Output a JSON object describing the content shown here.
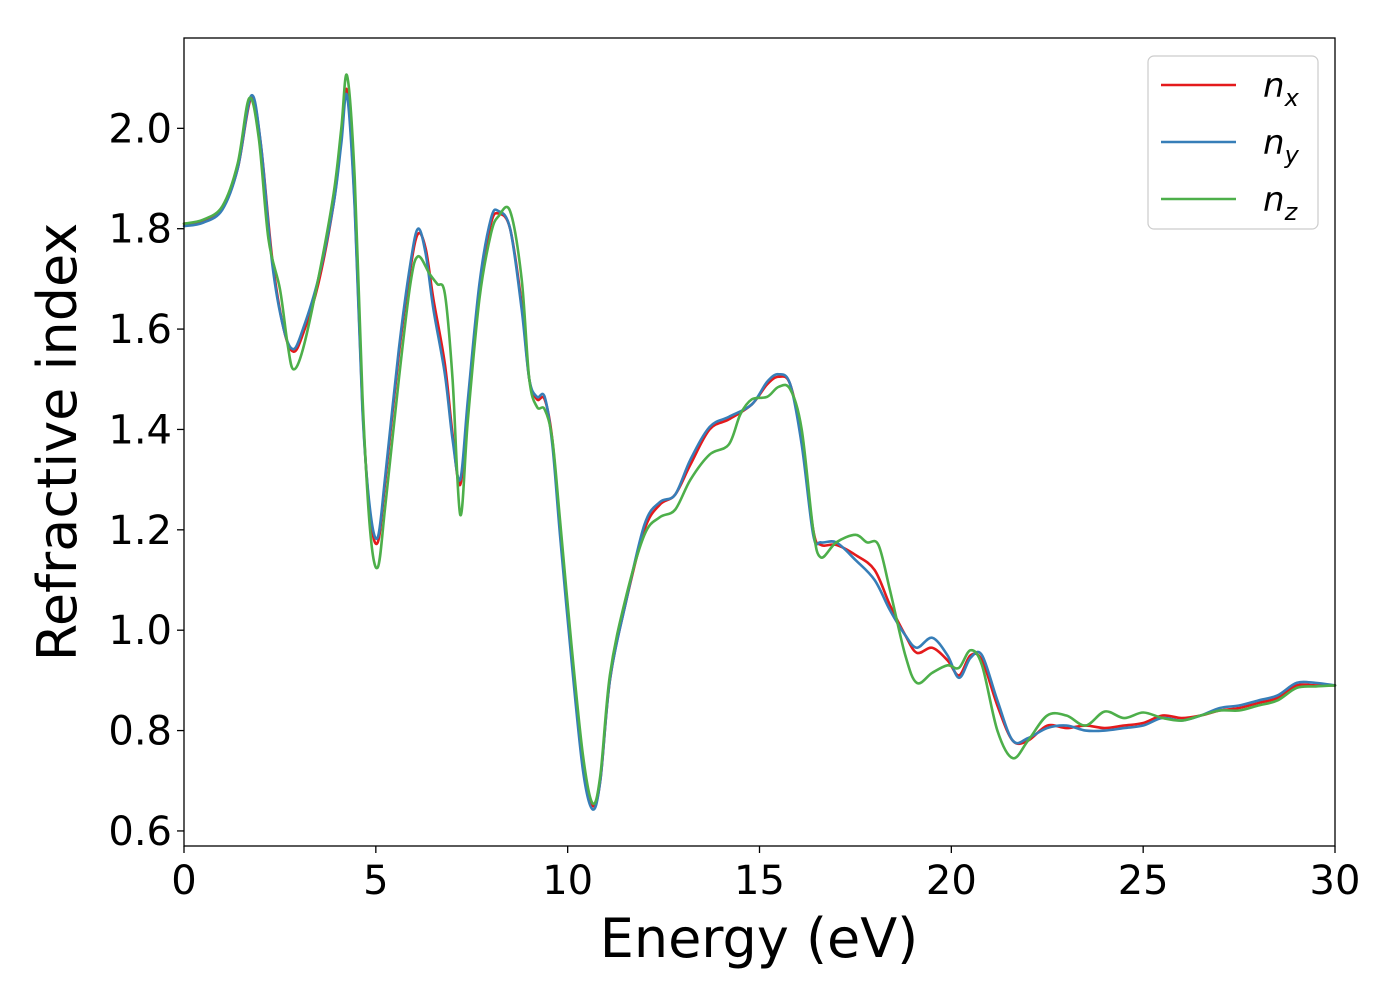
{
  "chart_data": {
    "type": "line",
    "title": "",
    "xlabel": "Energy (eV)",
    "ylabel": "Refractive index",
    "xlim": [
      0,
      30
    ],
    "ylim": [
      0.57,
      2.18
    ],
    "xticks": [
      0,
      5,
      10,
      15,
      20,
      25,
      30
    ],
    "xtick_labels": [
      "0",
      "5",
      "10",
      "15",
      "20",
      "25",
      "30"
    ],
    "yticks": [
      0.6,
      0.8,
      1.0,
      1.2,
      1.4,
      1.6,
      1.8,
      2.0
    ],
    "ytick_labels": [
      "0.6",
      "0.8",
      "1.0",
      "1.2",
      "1.4",
      "1.6",
      "1.8",
      "2.0"
    ],
    "grid": false,
    "legend_position": "top-right",
    "series": [
      {
        "name": "n_x",
        "label_base": "n",
        "label_sub": "x",
        "color": "#e41a1c",
        "points": [
          [
            0,
            1.81
          ],
          [
            0.5,
            1.815
          ],
          [
            1.0,
            1.84
          ],
          [
            1.4,
            1.92
          ],
          [
            1.75,
            2.06
          ],
          [
            2.0,
            1.97
          ],
          [
            2.3,
            1.74
          ],
          [
            2.6,
            1.6
          ],
          [
            2.85,
            1.555
          ],
          [
            3.1,
            1.59
          ],
          [
            3.5,
            1.69
          ],
          [
            3.9,
            1.85
          ],
          [
            4.1,
            1.98
          ],
          [
            4.25,
            2.075
          ],
          [
            4.45,
            1.85
          ],
          [
            4.65,
            1.45
          ],
          [
            4.85,
            1.23
          ],
          [
            5.05,
            1.175
          ],
          [
            5.25,
            1.3
          ],
          [
            5.6,
            1.55
          ],
          [
            5.9,
            1.72
          ],
          [
            6.1,
            1.79
          ],
          [
            6.3,
            1.76
          ],
          [
            6.5,
            1.66
          ],
          [
            6.8,
            1.53
          ],
          [
            7.0,
            1.39
          ],
          [
            7.2,
            1.29
          ],
          [
            7.4,
            1.45
          ],
          [
            7.7,
            1.68
          ],
          [
            8.0,
            1.81
          ],
          [
            8.2,
            1.83
          ],
          [
            8.5,
            1.8
          ],
          [
            8.8,
            1.65
          ],
          [
            9.0,
            1.5
          ],
          [
            9.2,
            1.46
          ],
          [
            9.4,
            1.46
          ],
          [
            9.6,
            1.38
          ],
          [
            9.8,
            1.2
          ],
          [
            10.1,
            0.95
          ],
          [
            10.4,
            0.73
          ],
          [
            10.65,
            0.65
          ],
          [
            10.85,
            0.7
          ],
          [
            11.1,
            0.9
          ],
          [
            11.5,
            1.05
          ],
          [
            12.0,
            1.2
          ],
          [
            12.4,
            1.25
          ],
          [
            12.8,
            1.27
          ],
          [
            13.2,
            1.33
          ],
          [
            13.7,
            1.4
          ],
          [
            14.2,
            1.42
          ],
          [
            14.8,
            1.45
          ],
          [
            15.2,
            1.49
          ],
          [
            15.5,
            1.505
          ],
          [
            15.8,
            1.49
          ],
          [
            16.1,
            1.38
          ],
          [
            16.4,
            1.2
          ],
          [
            16.6,
            1.17
          ],
          [
            17.0,
            1.17
          ],
          [
            17.5,
            1.15
          ],
          [
            18.0,
            1.12
          ],
          [
            18.4,
            1.05
          ],
          [
            18.8,
            0.99
          ],
          [
            19.1,
            0.955
          ],
          [
            19.5,
            0.965
          ],
          [
            19.9,
            0.94
          ],
          [
            20.2,
            0.91
          ],
          [
            20.5,
            0.95
          ],
          [
            20.8,
            0.94
          ],
          [
            21.2,
            0.85
          ],
          [
            21.6,
            0.78
          ],
          [
            22.0,
            0.78
          ],
          [
            22.5,
            0.81
          ],
          [
            23.0,
            0.805
          ],
          [
            23.5,
            0.81
          ],
          [
            24.0,
            0.805
          ],
          [
            24.5,
            0.81
          ],
          [
            25.0,
            0.815
          ],
          [
            25.5,
            0.83
          ],
          [
            26.0,
            0.825
          ],
          [
            26.5,
            0.83
          ],
          [
            27.0,
            0.84
          ],
          [
            27.5,
            0.845
          ],
          [
            28.0,
            0.855
          ],
          [
            28.5,
            0.865
          ],
          [
            29.0,
            0.89
          ],
          [
            29.5,
            0.89
          ],
          [
            30.0,
            0.89
          ]
        ]
      },
      {
        "name": "n_y",
        "label_base": "n",
        "label_sub": "y",
        "color": "#377eb8",
        "points": [
          [
            0,
            1.805
          ],
          [
            0.5,
            1.812
          ],
          [
            1.0,
            1.838
          ],
          [
            1.4,
            1.92
          ],
          [
            1.75,
            2.065
          ],
          [
            2.0,
            1.97
          ],
          [
            2.3,
            1.73
          ],
          [
            2.6,
            1.6
          ],
          [
            2.85,
            1.56
          ],
          [
            3.1,
            1.6
          ],
          [
            3.5,
            1.7
          ],
          [
            3.9,
            1.85
          ],
          [
            4.1,
            1.97
          ],
          [
            4.25,
            2.065
          ],
          [
            4.45,
            1.84
          ],
          [
            4.65,
            1.44
          ],
          [
            4.85,
            1.24
          ],
          [
            5.05,
            1.185
          ],
          [
            5.25,
            1.31
          ],
          [
            5.6,
            1.56
          ],
          [
            5.9,
            1.73
          ],
          [
            6.1,
            1.8
          ],
          [
            6.3,
            1.75
          ],
          [
            6.5,
            1.64
          ],
          [
            6.8,
            1.51
          ],
          [
            7.0,
            1.38
          ],
          [
            7.2,
            1.3
          ],
          [
            7.4,
            1.46
          ],
          [
            7.7,
            1.69
          ],
          [
            8.0,
            1.82
          ],
          [
            8.2,
            1.835
          ],
          [
            8.5,
            1.8
          ],
          [
            8.8,
            1.64
          ],
          [
            9.0,
            1.5
          ],
          [
            9.2,
            1.465
          ],
          [
            9.4,
            1.465
          ],
          [
            9.6,
            1.37
          ],
          [
            9.8,
            1.19
          ],
          [
            10.1,
            0.94
          ],
          [
            10.4,
            0.72
          ],
          [
            10.65,
            0.643
          ],
          [
            10.85,
            0.7
          ],
          [
            11.1,
            0.9
          ],
          [
            11.5,
            1.05
          ],
          [
            12.0,
            1.21
          ],
          [
            12.4,
            1.255
          ],
          [
            12.8,
            1.27
          ],
          [
            13.2,
            1.34
          ],
          [
            13.7,
            1.405
          ],
          [
            14.2,
            1.425
          ],
          [
            14.8,
            1.45
          ],
          [
            15.2,
            1.495
          ],
          [
            15.5,
            1.51
          ],
          [
            15.8,
            1.49
          ],
          [
            16.1,
            1.37
          ],
          [
            16.4,
            1.19
          ],
          [
            16.6,
            1.175
          ],
          [
            17.0,
            1.175
          ],
          [
            17.5,
            1.14
          ],
          [
            18.0,
            1.1
          ],
          [
            18.4,
            1.04
          ],
          [
            18.8,
            0.99
          ],
          [
            19.1,
            0.965
          ],
          [
            19.5,
            0.985
          ],
          [
            19.9,
            0.95
          ],
          [
            20.2,
            0.905
          ],
          [
            20.5,
            0.945
          ],
          [
            20.8,
            0.95
          ],
          [
            21.2,
            0.86
          ],
          [
            21.6,
            0.78
          ],
          [
            22.0,
            0.785
          ],
          [
            22.5,
            0.805
          ],
          [
            23.0,
            0.81
          ],
          [
            23.5,
            0.8
          ],
          [
            24.0,
            0.8
          ],
          [
            24.5,
            0.805
          ],
          [
            25.0,
            0.81
          ],
          [
            25.5,
            0.825
          ],
          [
            26.0,
            0.82
          ],
          [
            26.5,
            0.83
          ],
          [
            27.0,
            0.845
          ],
          [
            27.5,
            0.85
          ],
          [
            28.0,
            0.86
          ],
          [
            28.5,
            0.87
          ],
          [
            29.0,
            0.895
          ],
          [
            29.5,
            0.895
          ],
          [
            30.0,
            0.89
          ]
        ]
      },
      {
        "name": "n_z",
        "label_base": "n",
        "label_sub": "z",
        "color": "#4daf4a",
        "points": [
          [
            0,
            1.81
          ],
          [
            0.5,
            1.818
          ],
          [
            1.0,
            1.845
          ],
          [
            1.4,
            1.93
          ],
          [
            1.7,
            2.06
          ],
          [
            1.95,
            1.98
          ],
          [
            2.2,
            1.78
          ],
          [
            2.5,
            1.68
          ],
          [
            2.7,
            1.57
          ],
          [
            2.85,
            1.52
          ],
          [
            3.1,
            1.56
          ],
          [
            3.5,
            1.7
          ],
          [
            3.9,
            1.87
          ],
          [
            4.1,
            2.0
          ],
          [
            4.25,
            2.105
          ],
          [
            4.45,
            1.9
          ],
          [
            4.65,
            1.47
          ],
          [
            4.85,
            1.2
          ],
          [
            5.05,
            1.125
          ],
          [
            5.25,
            1.25
          ],
          [
            5.6,
            1.5
          ],
          [
            5.9,
            1.69
          ],
          [
            6.1,
            1.745
          ],
          [
            6.4,
            1.71
          ],
          [
            6.6,
            1.69
          ],
          [
            6.8,
            1.67
          ],
          [
            7.0,
            1.5
          ],
          [
            7.2,
            1.23
          ],
          [
            7.4,
            1.42
          ],
          [
            7.7,
            1.66
          ],
          [
            8.0,
            1.79
          ],
          [
            8.2,
            1.825
          ],
          [
            8.5,
            1.835
          ],
          [
            8.8,
            1.7
          ],
          [
            9.0,
            1.5
          ],
          [
            9.2,
            1.445
          ],
          [
            9.4,
            1.44
          ],
          [
            9.6,
            1.38
          ],
          [
            9.8,
            1.22
          ],
          [
            10.1,
            0.97
          ],
          [
            10.4,
            0.75
          ],
          [
            10.65,
            0.655
          ],
          [
            10.85,
            0.71
          ],
          [
            11.1,
            0.91
          ],
          [
            11.5,
            1.06
          ],
          [
            12.0,
            1.19
          ],
          [
            12.4,
            1.225
          ],
          [
            12.8,
            1.24
          ],
          [
            13.2,
            1.3
          ],
          [
            13.7,
            1.35
          ],
          [
            14.2,
            1.37
          ],
          [
            14.5,
            1.43
          ],
          [
            14.8,
            1.46
          ],
          [
            15.2,
            1.465
          ],
          [
            15.5,
            1.485
          ],
          [
            15.8,
            1.48
          ],
          [
            16.1,
            1.4
          ],
          [
            16.4,
            1.2
          ],
          [
            16.6,
            1.145
          ],
          [
            17.0,
            1.175
          ],
          [
            17.5,
            1.19
          ],
          [
            17.8,
            1.175
          ],
          [
            18.1,
            1.17
          ],
          [
            18.4,
            1.08
          ],
          [
            18.8,
            0.95
          ],
          [
            19.1,
            0.895
          ],
          [
            19.5,
            0.915
          ],
          [
            19.9,
            0.93
          ],
          [
            20.2,
            0.925
          ],
          [
            20.5,
            0.96
          ],
          [
            20.8,
            0.93
          ],
          [
            21.2,
            0.8
          ],
          [
            21.6,
            0.745
          ],
          [
            22.0,
            0.78
          ],
          [
            22.5,
            0.83
          ],
          [
            23.0,
            0.83
          ],
          [
            23.5,
            0.81
          ],
          [
            24.0,
            0.838
          ],
          [
            24.5,
            0.825
          ],
          [
            25.0,
            0.836
          ],
          [
            25.5,
            0.825
          ],
          [
            26.0,
            0.82
          ],
          [
            26.5,
            0.83
          ],
          [
            27.0,
            0.84
          ],
          [
            27.5,
            0.84
          ],
          [
            28.0,
            0.85
          ],
          [
            28.5,
            0.86
          ],
          [
            29.0,
            0.885
          ],
          [
            29.5,
            0.888
          ],
          [
            30.0,
            0.89
          ]
        ]
      }
    ]
  }
}
